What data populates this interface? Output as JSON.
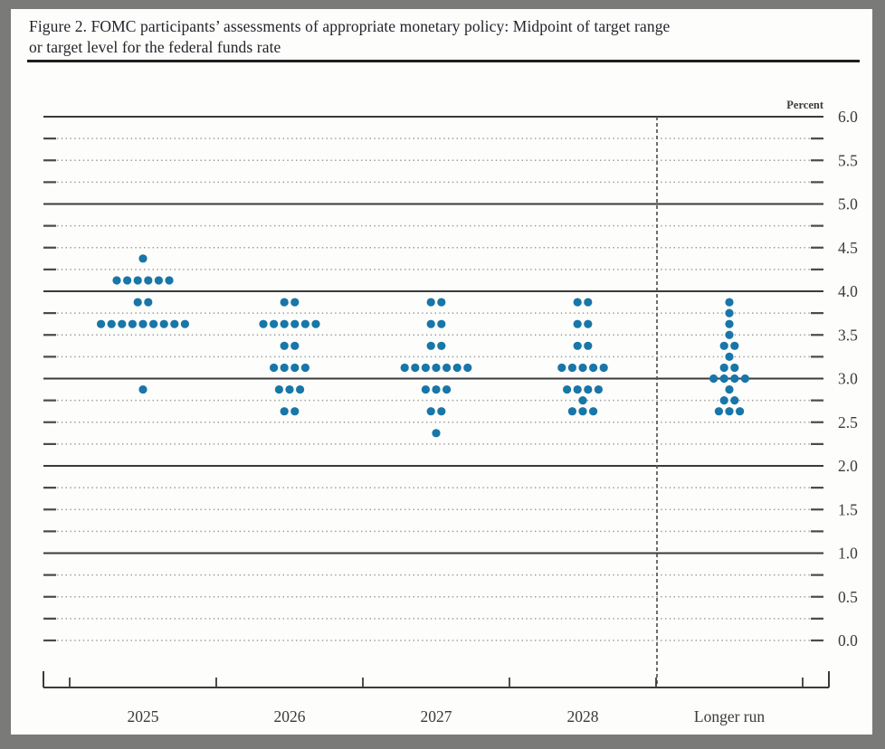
{
  "figure": {
    "title_line1": "Figure 2. FOMC participants’ assessments of appropriate monetary policy: Midpoint of target range",
    "title_line2": "or target level for the federal funds rate"
  },
  "chart_data": {
    "type": "scatter",
    "subtype": "fomc-dot-plot",
    "title": "Figure 2. FOMC participants’ assessments of appropriate monetary policy: Midpoint of target range or target level for the federal funds rate",
    "unit_label": "Percent",
    "categories": [
      "2025",
      "2026",
      "2027",
      "2028",
      "Longer run"
    ],
    "ylim": [
      0.0,
      6.0
    ],
    "y_label_step": 0.5,
    "y_gridline_step": 0.25,
    "y_solid_gridlines": [
      1.0,
      2.0,
      3.0,
      4.0,
      5.0,
      6.0
    ],
    "y_tick_labels": [
      "6.0",
      "5.5",
      "5.0",
      "4.5",
      "4.0",
      "3.5",
      "3.0",
      "2.5",
      "2.0",
      "1.5",
      "1.0",
      "0.5",
      "0.0"
    ],
    "grid": "horizontal, dashed at quarter percent, solid at whole percent",
    "legend_position": "none",
    "separator_before_category": "Longer run",
    "dots_per_column": 19,
    "series": [
      {
        "category": "2025",
        "dots": [
          {
            "rate": 4.375,
            "count": 1
          },
          {
            "rate": 4.125,
            "count": 6
          },
          {
            "rate": 3.875,
            "count": 2
          },
          {
            "rate": 3.625,
            "count": 9
          },
          {
            "rate": 2.875,
            "count": 1
          }
        ]
      },
      {
        "category": "2026",
        "dots": [
          {
            "rate": 3.875,
            "count": 2
          },
          {
            "rate": 3.625,
            "count": 6
          },
          {
            "rate": 3.375,
            "count": 2
          },
          {
            "rate": 3.125,
            "count": 4
          },
          {
            "rate": 2.875,
            "count": 3
          },
          {
            "rate": 2.625,
            "count": 2
          }
        ]
      },
      {
        "category": "2027",
        "dots": [
          {
            "rate": 3.875,
            "count": 2
          },
          {
            "rate": 3.625,
            "count": 2
          },
          {
            "rate": 3.375,
            "count": 2
          },
          {
            "rate": 3.125,
            "count": 7
          },
          {
            "rate": 2.875,
            "count": 3
          },
          {
            "rate": 2.625,
            "count": 2
          },
          {
            "rate": 2.375,
            "count": 1
          }
        ]
      },
      {
        "category": "2028",
        "dots": [
          {
            "rate": 3.875,
            "count": 2
          },
          {
            "rate": 3.625,
            "count": 2
          },
          {
            "rate": 3.375,
            "count": 2
          },
          {
            "rate": 3.125,
            "count": 5
          },
          {
            "rate": 2.875,
            "count": 4
          },
          {
            "rate": 2.75,
            "count": 1
          },
          {
            "rate": 2.625,
            "count": 3
          }
        ]
      },
      {
        "category": "Longer run",
        "dots": [
          {
            "rate": 3.875,
            "count": 1
          },
          {
            "rate": 3.75,
            "count": 1
          },
          {
            "rate": 3.625,
            "count": 1
          },
          {
            "rate": 3.5,
            "count": 1
          },
          {
            "rate": 3.375,
            "count": 2
          },
          {
            "rate": 3.25,
            "count": 1
          },
          {
            "rate": 3.125,
            "count": 2
          },
          {
            "rate": 3.0,
            "count": 4
          },
          {
            "rate": 2.875,
            "count": 1
          },
          {
            "rate": 2.75,
            "count": 2
          },
          {
            "rate": 2.625,
            "count": 3
          }
        ]
      }
    ],
    "colors": {
      "dot": "#1876a8",
      "solid_gridline": "#3a3a3a",
      "dashed_gridline": "#9b9b9b",
      "stub": "#4a4a4a",
      "separator": "#555555",
      "axis": "#3a3a3a",
      "text": "#3a3a3a",
      "title_text": "#23232c",
      "page_background": "#fdfdfb",
      "frame_background": "#7a7a78"
    }
  }
}
